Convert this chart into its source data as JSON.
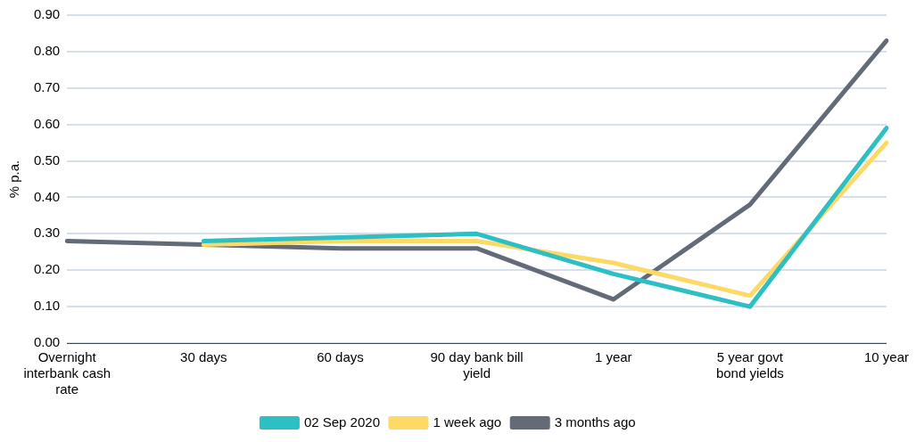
{
  "chart_data": {
    "type": "line",
    "ylabel": "% p.a.",
    "categories": [
      [
        "Overnight",
        "interbank cash",
        "rate"
      ],
      "30 days",
      "60 days",
      [
        "90 day bank bill",
        "yield"
      ],
      "1 year",
      [
        "5 year govt",
        "bond yields"
      ],
      "10 year"
    ],
    "series": [
      {
        "name": "02 Sep 2020",
        "color": "#2ebfc4",
        "values": [
          null,
          0.28,
          0.29,
          0.3,
          0.19,
          0.1,
          0.59
        ]
      },
      {
        "name": "1 week ago",
        "color": "#ffd966",
        "values": [
          null,
          0.27,
          0.28,
          0.28,
          0.22,
          0.13,
          0.55
        ]
      },
      {
        "name": "3 months ago",
        "color": "#626b77",
        "values": [
          0.28,
          0.27,
          0.26,
          0.26,
          0.12,
          0.38,
          0.83
        ]
      }
    ],
    "ylim": [
      0,
      0.9
    ],
    "yticks": [
      {
        "value": 0,
        "label": "0.00"
      },
      {
        "value": 0.1,
        "label": "0.10"
      },
      {
        "value": 0.2,
        "label": "0.20"
      },
      {
        "value": 0.3,
        "label": "0.30"
      },
      {
        "value": 0.4,
        "label": "0.40"
      },
      {
        "value": 0.5,
        "label": "0.50"
      },
      {
        "value": 0.6,
        "label": "0.60"
      },
      {
        "value": 0.7,
        "label": "0.70"
      },
      {
        "value": 0.8,
        "label": "0.80"
      },
      {
        "value": 0.9,
        "label": "0.90"
      }
    ],
    "grid": "y",
    "legend": "bottom",
    "marker": "none",
    "line_style": "solid"
  }
}
